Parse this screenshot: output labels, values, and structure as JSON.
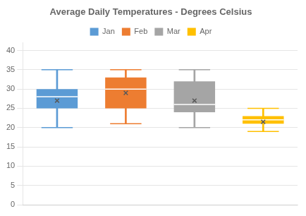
{
  "chart_data": {
    "type": "box",
    "title": "Average Daily Temperatures - Degrees Celsius",
    "categories": [
      "Jan",
      "Feb",
      "Mar",
      "Apr"
    ],
    "series": [
      {
        "name": "Jan",
        "color": "#5b9bd5",
        "q1": 25,
        "median": 28,
        "q3": 30,
        "whisker_low": 20,
        "whisker_high": 35,
        "mean": 27
      },
      {
        "name": "Feb",
        "color": "#ed7d31",
        "q1": 25,
        "median": 30,
        "q3": 33,
        "whisker_low": 21,
        "whisker_high": 35,
        "mean": 29
      },
      {
        "name": "Mar",
        "color": "#a5a5a5",
        "q1": 24,
        "median": 26,
        "q3": 32,
        "whisker_low": 20,
        "whisker_high": 35,
        "mean": 27
      },
      {
        "name": "Apr",
        "color": "#ffc000",
        "q1": 21,
        "median": 22,
        "q3": 23,
        "whisker_low": 19,
        "whisker_high": 25,
        "mean": 21.5
      }
    ],
    "ylim": [
      0,
      42
    ],
    "yticks": [
      0,
      5,
      10,
      15,
      20,
      25,
      30,
      35,
      40
    ],
    "grid": true,
    "legend": "top",
    "marker": "x",
    "tick_labels": "y"
  }
}
